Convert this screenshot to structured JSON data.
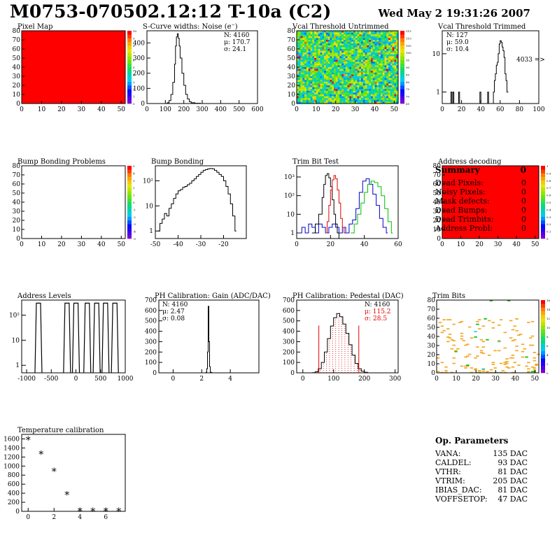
{
  "header": {
    "title": "M0753-070502.12:12 T-10a (C2)",
    "date": "Wed May  2 19:31:26 2007"
  },
  "colors": {
    "hist_black": "#000000",
    "trim_red": "#e00000",
    "trim_blue": "#0000d0",
    "trim_green": "#00c000",
    "map_red": "#ff0000",
    "trim_orange": "#f5a623"
  },
  "summary": {
    "title": "Summary",
    "total": "0",
    "items": [
      {
        "label": "Dead Pixels:",
        "value": "0"
      },
      {
        "label": "Noisy Pixels:",
        "value": "0"
      },
      {
        "label": "Mask defects:",
        "value": "0"
      },
      {
        "label": "Dead Bumps:",
        "value": "0"
      },
      {
        "label": "Dead Trimbits:",
        "value": "0"
      },
      {
        "label": "Address Probl:",
        "value": "0"
      }
    ]
  },
  "op_params": {
    "title": "Op. Parameters",
    "items": [
      {
        "label": "VANA:",
        "value": "135 DAC"
      },
      {
        "label": "CALDEL:",
        "value": "93 DAC"
      },
      {
        "label": "VTHR:",
        "value": "81 DAC"
      },
      {
        "label": "VTRIM:",
        "value": "205 DAC"
      },
      {
        "label": "IBIAS_DAC:",
        "value": "81 DAC"
      },
      {
        "label": "VOFFSETOP:",
        "value": "47 DAC"
      }
    ]
  },
  "chart_data": [
    {
      "type": "heatmap",
      "title": "Pixel Map",
      "xlim": [
        0,
        52
      ],
      "ylim": [
        0,
        80
      ],
      "xticks": [
        0,
        10,
        20,
        30,
        40,
        50
      ],
      "yticks": [
        0,
        10,
        20,
        30,
        40,
        50,
        60,
        70,
        80
      ],
      "fill": "uniform-red",
      "scale": [
        "0",
        "1",
        "2",
        "3",
        "4",
        "5",
        "6",
        "7",
        "8",
        "9",
        "10"
      ]
    },
    {
      "type": "line",
      "title": "S-Curve widths: Noise (e⁻)",
      "xlim": [
        0,
        600
      ],
      "ylim": [
        0,
        480
      ],
      "xticks": [
        0,
        100,
        200,
        300,
        400,
        500,
        600
      ],
      "yticks": [
        0,
        100,
        200,
        300,
        400
      ],
      "stats": [
        "N: 4160",
        "μ: 170.7",
        "σ: 24.1"
      ],
      "series": [
        {
          "x": [
            100,
            110,
            120,
            130,
            140,
            150,
            155,
            160,
            165,
            170,
            175,
            180,
            190,
            200,
            210,
            220,
            230,
            240,
            260,
            290
          ],
          "y": [
            0,
            5,
            20,
            60,
            140,
            260,
            380,
            440,
            460,
            430,
            380,
            300,
            200,
            120,
            60,
            30,
            12,
            5,
            2,
            0
          ]
        }
      ]
    },
    {
      "type": "heatmap",
      "title": "Vcal Threshold Untrimmed",
      "xlim": [
        0,
        52
      ],
      "ylim": [
        0,
        80
      ],
      "xticks": [
        0,
        10,
        20,
        30,
        40,
        50
      ],
      "yticks": [
        0,
        10,
        20,
        30,
        40,
        50,
        60,
        70,
        80
      ],
      "fill": "noise-green-yellow",
      "scale": [
        "65",
        "70",
        "75",
        "80",
        "85",
        "90",
        "95",
        "100",
        "105",
        "110",
        "115"
      ]
    },
    {
      "type": "line",
      "title": "Vcal Threshold Trimmed",
      "xlim": [
        0,
        100
      ],
      "log_y": true,
      "xticks": [
        0,
        20,
        40,
        60,
        80,
        100
      ],
      "yticks": [
        "1",
        "10"
      ],
      "stats": [
        "N:  127",
        "μ: 59.0",
        "σ: 10.4"
      ],
      "overflow_label": "4033 =>",
      "series": [
        {
          "x": [
            8,
            9,
            10,
            11,
            12,
            16,
            17,
            18,
            19,
            38,
            39,
            40,
            41,
            46,
            47,
            48,
            53,
            54,
            55,
            56,
            57,
            58,
            59,
            60,
            61,
            62,
            63,
            64,
            65,
            66,
            67
          ],
          "y": [
            0,
            1,
            0,
            1,
            0,
            0,
            1,
            0,
            0,
            0,
            1,
            0,
            0,
            0,
            1,
            0,
            1,
            2,
            3,
            5,
            6,
            10,
            18,
            22,
            20,
            15,
            12,
            8,
            3,
            2,
            1
          ]
        }
      ]
    },
    {
      "type": "heatmap",
      "title": "Bump Bonding Problems",
      "xlim": [
        0,
        52
      ],
      "ylim": [
        0,
        80
      ],
      "xticks": [
        0,
        10,
        20,
        30,
        40,
        50
      ],
      "yticks": [
        0,
        10,
        20,
        30,
        40,
        50,
        60,
        70,
        80
      ],
      "fill": "empty",
      "scale": [
        "-5",
        "-4",
        "-3",
        "-2",
        "-1",
        "0",
        "1",
        "2",
        "3",
        "4",
        "5"
      ]
    },
    {
      "type": "line",
      "title": "Bump Bonding",
      "xlim": [
        -50,
        -10
      ],
      "log_y": true,
      "xticks": [
        -50,
        -40,
        -30,
        -20
      ],
      "yticks": [
        "1",
        "10",
        "10²"
      ],
      "series": [
        {
          "x": [
            -49,
            -48,
            -47,
            -46,
            -45,
            -44,
            -43,
            -42,
            -41,
            -40,
            -39,
            -38,
            -37,
            -36,
            -35,
            -34,
            -33,
            -32,
            -31,
            -30,
            -29,
            -28,
            -27,
            -26,
            -25,
            -24,
            -23,
            -22,
            -21,
            -20,
            -19,
            -18,
            -17,
            -16,
            -15
          ],
          "y": [
            1,
            2,
            3,
            5,
            4,
            8,
            12,
            20,
            30,
            40,
            45,
            55,
            60,
            70,
            80,
            100,
            120,
            150,
            180,
            220,
            260,
            280,
            300,
            310,
            300,
            260,
            220,
            180,
            150,
            100,
            60,
            30,
            12,
            4,
            1
          ]
        }
      ]
    },
    {
      "type": "line",
      "title": "Trim Bit Test",
      "xlim": [
        0,
        60
      ],
      "log_y": true,
      "xticks": [
        0,
        20,
        40,
        60
      ],
      "yticks": [
        "1",
        "10",
        "10²",
        "10³"
      ],
      "series": [
        {
          "color": "#0000d0",
          "x": [
            1,
            3,
            5,
            7,
            9,
            11,
            13,
            15,
            17,
            19,
            21,
            23,
            25,
            27,
            29,
            31,
            33,
            35,
            37,
            39,
            41,
            43,
            45,
            47,
            49,
            51,
            53
          ],
          "y": [
            1,
            2,
            1,
            3,
            2,
            1,
            3,
            2,
            1,
            2,
            3,
            2,
            1,
            2,
            1,
            3,
            5,
            20,
            150,
            600,
            800,
            400,
            120,
            30,
            6,
            2,
            1
          ]
        },
        {
          "color": "#000000",
          "x": [
            9,
            11,
            13,
            15,
            16,
            17,
            18,
            19,
            20,
            21,
            22,
            23,
            24,
            25,
            27
          ],
          "y": [
            1,
            3,
            10,
            80,
            400,
            1200,
            1500,
            900,
            300,
            60,
            10,
            3,
            1,
            0,
            0
          ]
        },
        {
          "color": "#e00000",
          "x": [
            17,
            18,
            19,
            20,
            21,
            22,
            23,
            24,
            25,
            26,
            27,
            28
          ],
          "y": [
            1,
            4,
            30,
            200,
            700,
            1200,
            800,
            200,
            40,
            6,
            2,
            1
          ]
        },
        {
          "color": "#00c000",
          "x": [
            32,
            34,
            36,
            38,
            40,
            42,
            44,
            46,
            48,
            50,
            52,
            54,
            56
          ],
          "y": [
            1,
            3,
            10,
            40,
            150,
            400,
            600,
            500,
            300,
            100,
            20,
            4,
            1
          ]
        }
      ]
    },
    {
      "type": "heatmap",
      "title": "Address decoding",
      "xlim": [
        0,
        52
      ],
      "ylim": [
        0,
        80
      ],
      "xticks": [
        0,
        10,
        20,
        30,
        40,
        50
      ],
      "yticks": [
        0,
        10,
        20,
        30,
        40,
        50,
        60,
        70,
        80
      ],
      "fill": "uniform-red",
      "scale": [
        "0",
        "0.1",
        "0.2",
        "0.3",
        "0.4",
        "0.5",
        "0.6",
        "0.7",
        "0.8",
        "0.9",
        "1"
      ]
    },
    {
      "type": "line",
      "title": "Address Levels",
      "xlim": [
        -1100,
        1000
      ],
      "log_y": true,
      "xticks": [
        -1000,
        -500,
        0,
        500,
        1000
      ],
      "yticks": [
        "1",
        "10",
        "10²"
      ],
      "series": [
        {
          "peaks": [
            -760,
            -180,
            0,
            230,
            420,
            600,
            790
          ],
          "height": 300
        }
      ]
    },
    {
      "type": "line",
      "title": "PH Calibration: Gain (ADC/DAC)",
      "xlim": [
        -1,
        6
      ],
      "ylim": [
        0,
        700
      ],
      "xticks": [
        0,
        2,
        4
      ],
      "yticks": [
        0,
        100,
        200,
        300,
        400,
        500,
        600,
        700
      ],
      "stats": [
        "N: 4160",
        "μ: 2.47",
        "σ: 0.08"
      ],
      "series": [
        {
          "x": [
            2.2,
            2.3,
            2.35,
            2.4,
            2.45,
            2.5,
            2.55,
            2.6,
            2.7
          ],
          "y": [
            0,
            5,
            40,
            200,
            640,
            300,
            60,
            5,
            0
          ]
        }
      ]
    },
    {
      "type": "line",
      "title": "PH Calibration: Pedestal (DAC)",
      "xlim": [
        -20,
        310
      ],
      "ylim": [
        0,
        700
      ],
      "xticks": [
        0,
        100,
        200,
        300
      ],
      "yticks": [
        0,
        100,
        200,
        300,
        400,
        500,
        600,
        700
      ],
      "stats": [
        "N: 4160",
        "μ: 115.2",
        "σ: 28.5"
      ],
      "cut_lines": [
        52,
        182
      ],
      "series": [
        {
          "x": [
            30,
            40,
            50,
            60,
            70,
            80,
            90,
            100,
            110,
            120,
            130,
            140,
            150,
            160,
            170,
            180,
            190,
            200,
            210
          ],
          "y": [
            2,
            10,
            40,
            100,
            200,
            330,
            450,
            530,
            570,
            540,
            470,
            380,
            270,
            170,
            90,
            40,
            15,
            5,
            1
          ]
        }
      ]
    },
    {
      "type": "heatmap",
      "title": "Trim Bits",
      "xlim": [
        0,
        52
      ],
      "ylim": [
        0,
        80
      ],
      "xticks": [
        0,
        10,
        20,
        30,
        40,
        50
      ],
      "yticks": [
        0,
        10,
        20,
        30,
        40,
        50,
        60,
        70,
        80
      ],
      "fill": "sparse-orange",
      "scale": [
        "0",
        "2",
        "4",
        "6",
        "8",
        "10",
        "12",
        "14",
        "16"
      ]
    },
    {
      "type": "scatter",
      "title": "Temperature calibration",
      "xlim": [
        -0.5,
        7.5
      ],
      "ylim": [
        0,
        1700
      ],
      "xticks": [
        0,
        2,
        4,
        6
      ],
      "yticks": [
        0,
        200,
        400,
        600,
        800,
        1000,
        1200,
        1400,
        1600
      ],
      "x": [
        0,
        1,
        2,
        3,
        4,
        5,
        6,
        7
      ],
      "y": [
        1580,
        1260,
        880,
        360,
        0,
        0,
        0,
        0
      ]
    }
  ]
}
